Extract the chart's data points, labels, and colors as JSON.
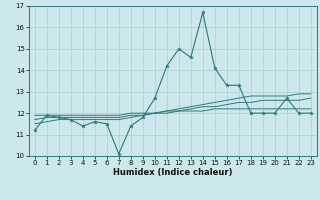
{
  "xlabel": "Humidex (Indice chaleur)",
  "bg_color": "#cce8ec",
  "grid_color": "#aacdd4",
  "line_color": "#2d7a78",
  "x": [
    0,
    1,
    2,
    3,
    4,
    5,
    6,
    7,
    8,
    9,
    10,
    11,
    12,
    13,
    14,
    15,
    16,
    17,
    18,
    19,
    20,
    21,
    22,
    23
  ],
  "y_main": [
    11.2,
    11.9,
    11.8,
    11.7,
    11.4,
    11.6,
    11.5,
    10.1,
    11.4,
    11.8,
    12.7,
    14.2,
    15.0,
    14.6,
    16.7,
    14.1,
    13.3,
    13.3,
    12.0,
    12.0,
    12.0,
    12.7,
    12.0,
    12.0
  ],
  "y_line1": [
    11.5,
    11.6,
    11.7,
    11.7,
    11.7,
    11.7,
    11.7,
    11.7,
    11.8,
    11.9,
    12.0,
    12.1,
    12.2,
    12.3,
    12.4,
    12.5,
    12.6,
    12.7,
    12.8,
    12.8,
    12.8,
    12.8,
    12.9,
    12.9
  ],
  "y_line2": [
    11.7,
    11.8,
    11.8,
    11.8,
    11.8,
    11.8,
    11.8,
    11.8,
    11.9,
    11.9,
    12.0,
    12.1,
    12.1,
    12.2,
    12.3,
    12.3,
    12.4,
    12.5,
    12.5,
    12.6,
    12.6,
    12.6,
    12.6,
    12.7
  ],
  "y_line3": [
    11.9,
    11.9,
    11.9,
    11.9,
    11.9,
    11.9,
    11.9,
    11.9,
    12.0,
    12.0,
    12.0,
    12.0,
    12.1,
    12.1,
    12.1,
    12.2,
    12.2,
    12.2,
    12.2,
    12.2,
    12.2,
    12.2,
    12.2,
    12.2
  ],
  "ylim": [
    10,
    17
  ],
  "xlim": [
    -0.5,
    23.5
  ],
  "yticks": [
    10,
    11,
    12,
    13,
    14,
    15,
    16,
    17
  ],
  "xticks": [
    0,
    1,
    2,
    3,
    4,
    5,
    6,
    7,
    8,
    9,
    10,
    11,
    12,
    13,
    14,
    15,
    16,
    17,
    18,
    19,
    20,
    21,
    22,
    23
  ]
}
